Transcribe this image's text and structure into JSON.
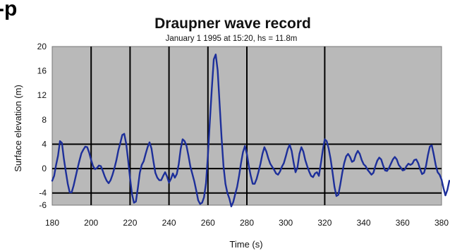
{
  "header_fragment": "-p",
  "chart_data": {
    "type": "line",
    "title": "Draupner wave record",
    "subtitle": "January 1 1995 at 15:20, hs = 11.8m",
    "xlabel": "Time (s)",
    "ylabel": "Surface elevation (m)",
    "xlim": [
      180,
      380
    ],
    "ylim": [
      -6,
      20
    ],
    "xticks": [
      180,
      200,
      220,
      240,
      260,
      280,
      300,
      320,
      340,
      360,
      380
    ],
    "yticks": [
      -6,
      -4,
      0,
      4,
      8,
      12,
      16,
      20
    ],
    "ytick_labels": [
      "-6",
      "-4",
      "0",
      "4",
      "8",
      "12",
      "16",
      "20"
    ],
    "vertical_gridlines": [
      200,
      220,
      240,
      260,
      280,
      320
    ],
    "horizontal_gridlines": [
      -4,
      0,
      4
    ],
    "grid": true,
    "legend": "none",
    "series": [
      {
        "color": "#1d2f9a",
        "points": [
          [
            180,
            -2
          ],
          [
            181,
            -1.2
          ],
          [
            182,
            0.6
          ],
          [
            183,
            2.1
          ],
          [
            184,
            4.5
          ],
          [
            185,
            4.2
          ],
          [
            186,
            1.6
          ],
          [
            187,
            -0.5
          ],
          [
            188,
            -2.5
          ],
          [
            189,
            -3.9
          ],
          [
            190,
            -3.9
          ],
          [
            191,
            -2.8
          ],
          [
            192,
            -1.4
          ],
          [
            193,
            0
          ],
          [
            194,
            1.3
          ],
          [
            195,
            2.5
          ],
          [
            196,
            3.1
          ],
          [
            197,
            3.6
          ],
          [
            198,
            3.5
          ],
          [
            199,
            2.6
          ],
          [
            200,
            1.4
          ],
          [
            201,
            0.4
          ],
          [
            202,
            -0.1
          ],
          [
            203,
            0.1
          ],
          [
            204,
            0.5
          ],
          [
            205,
            0.4
          ],
          [
            206,
            -0.4
          ],
          [
            207,
            -1.3
          ],
          [
            208,
            -2
          ],
          [
            209,
            -2.4
          ],
          [
            210,
            -1.9
          ],
          [
            211,
            -1
          ],
          [
            212,
            0.1
          ],
          [
            213,
            1.4
          ],
          [
            214,
            3
          ],
          [
            215,
            4.2
          ],
          [
            216,
            5.5
          ],
          [
            217,
            5.7
          ],
          [
            218,
            4.1
          ],
          [
            219,
            1.4
          ],
          [
            220,
            -1.6
          ],
          [
            221,
            -4.2
          ],
          [
            222,
            -5.6
          ],
          [
            223,
            -5.4
          ],
          [
            224,
            -3.2
          ],
          [
            225,
            -0.7
          ],
          [
            226,
            0.6
          ],
          [
            227,
            1.2
          ],
          [
            228,
            2.4
          ],
          [
            229,
            3.5
          ],
          [
            230,
            4.3
          ],
          [
            231,
            3.3
          ],
          [
            232,
            1.2
          ],
          [
            233,
            -0.7
          ],
          [
            234,
            -1.5
          ],
          [
            235,
            -1.9
          ],
          [
            236,
            -1.9
          ],
          [
            237,
            -1.2
          ],
          [
            238,
            -0.6
          ],
          [
            239,
            -1.3
          ],
          [
            240,
            -2.3
          ],
          [
            241,
            -1.7
          ],
          [
            242,
            -0.8
          ],
          [
            243,
            -1.5
          ],
          [
            244,
            -0.9
          ],
          [
            245,
            0.7
          ],
          [
            246,
            3.2
          ],
          [
            247,
            4.8
          ],
          [
            248,
            4.5
          ],
          [
            249,
            3.7
          ],
          [
            250,
            2.1
          ],
          [
            251,
            0.3
          ],
          [
            252,
            -0.9
          ],
          [
            253,
            -2.1
          ],
          [
            254,
            -3.6
          ],
          [
            255,
            -5.2
          ],
          [
            256,
            -5.8
          ],
          [
            257,
            -5.6
          ],
          [
            258,
            -4.7
          ],
          [
            259,
            -2.4
          ],
          [
            260,
            2.2
          ],
          [
            261,
            7.8
          ],
          [
            262,
            13.1
          ],
          [
            263,
            17.9
          ],
          [
            264,
            18.7
          ],
          [
            265,
            16.1
          ],
          [
            266,
            10.6
          ],
          [
            267,
            5.1
          ],
          [
            268,
            0.4
          ],
          [
            269,
            -2.5
          ],
          [
            270,
            -4
          ],
          [
            271,
            -4.9
          ],
          [
            272,
            -6.2
          ],
          [
            273,
            -5.5
          ],
          [
            274,
            -4.2
          ],
          [
            275,
            -3
          ],
          [
            276,
            -1.2
          ],
          [
            277,
            0.9
          ],
          [
            278,
            2.7
          ],
          [
            279,
            3.7
          ],
          [
            280,
            2.4
          ],
          [
            281,
            0.4
          ],
          [
            282,
            -1.2
          ],
          [
            283,
            -2.5
          ],
          [
            284,
            -2.5
          ],
          [
            285,
            -1.7
          ],
          [
            286,
            -0.5
          ],
          [
            287,
            0.8
          ],
          [
            288,
            2.4
          ],
          [
            289,
            3.5
          ],
          [
            290,
            2.8
          ],
          [
            291,
            1.7
          ],
          [
            292,
            0.8
          ],
          [
            293,
            0.3
          ],
          [
            294,
            -0.2
          ],
          [
            295,
            -0.8
          ],
          [
            296,
            -1
          ],
          [
            297,
            -0.5
          ],
          [
            298,
            0.3
          ],
          [
            299,
            0.9
          ],
          [
            300,
            2
          ],
          [
            301,
            3.2
          ],
          [
            302,
            3.9
          ],
          [
            303,
            2.9
          ],
          [
            304,
            1
          ],
          [
            305,
            -0.6
          ],
          [
            306,
            0.2
          ],
          [
            307,
            2.4
          ],
          [
            308,
            3.5
          ],
          [
            309,
            2.8
          ],
          [
            310,
            1.4
          ],
          [
            311,
            0.4
          ],
          [
            312,
            -0.5
          ],
          [
            313,
            -1.2
          ],
          [
            314,
            -1.4
          ],
          [
            315,
            -0.8
          ],
          [
            316,
            -0.6
          ],
          [
            317,
            -1.2
          ],
          [
            318,
            0.8
          ],
          [
            319,
            3
          ],
          [
            320,
            4.8
          ],
          [
            321,
            4.5
          ],
          [
            322,
            3.3
          ],
          [
            323,
            1.6
          ],
          [
            324,
            -0.6
          ],
          [
            325,
            -3
          ],
          [
            326,
            -4.5
          ],
          [
            327,
            -4.3
          ],
          [
            328,
            -2.6
          ],
          [
            329,
            -0.7
          ],
          [
            330,
            0.9
          ],
          [
            331,
            2
          ],
          [
            332,
            2.4
          ],
          [
            333,
            1.9
          ],
          [
            334,
            1.1
          ],
          [
            335,
            1.3
          ],
          [
            336,
            2.3
          ],
          [
            337,
            2.9
          ],
          [
            338,
            2.4
          ],
          [
            339,
            1.4
          ],
          [
            340,
            0.7
          ],
          [
            341,
            0.4
          ],
          [
            342,
            -0.2
          ],
          [
            343,
            -0.6
          ],
          [
            344,
            -1
          ],
          [
            345,
            -0.7
          ],
          [
            346,
            0.4
          ],
          [
            347,
            1.3
          ],
          [
            348,
            1.8
          ],
          [
            349,
            1.5
          ],
          [
            350,
            0.5
          ],
          [
            351,
            -0.3
          ],
          [
            352,
            -0.4
          ],
          [
            353,
            0.1
          ],
          [
            354,
            0.8
          ],
          [
            355,
            1.5
          ],
          [
            356,
            1.9
          ],
          [
            357,
            1.5
          ],
          [
            358,
            0.6
          ],
          [
            359,
            0.2
          ],
          [
            360,
            -0.3
          ],
          [
            361,
            -0.2
          ],
          [
            362,
            0.4
          ],
          [
            363,
            0.8
          ],
          [
            364,
            0.6
          ],
          [
            365,
            0.8
          ],
          [
            366,
            1.4
          ],
          [
            367,
            1.5
          ],
          [
            368,
            0.9
          ],
          [
            369,
            -0.1
          ],
          [
            370,
            -0.9
          ],
          [
            371,
            -0.7
          ],
          [
            372,
            0.4
          ],
          [
            373,
            2.2
          ],
          [
            374,
            3.6
          ],
          [
            375,
            3.8
          ],
          [
            376,
            2.3
          ],
          [
            377,
            0.6
          ],
          [
            378,
            -0.6
          ],
          [
            379,
            -1
          ],
          [
            380,
            -1.8
          ],
          [
            381,
            -3.2
          ],
          [
            382,
            -4.4
          ],
          [
            383,
            -3.5
          ],
          [
            384,
            -2
          ]
        ]
      }
    ]
  }
}
